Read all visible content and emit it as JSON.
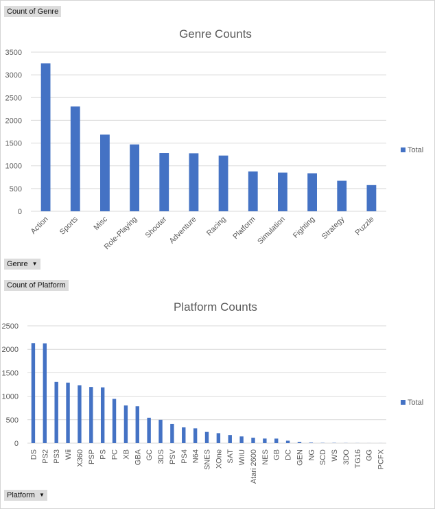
{
  "genre_panel": {
    "field_label": "Count of Genre",
    "axis_button": "Genre"
  },
  "platform_panel": {
    "field_label": "Count of Platform",
    "axis_button": "Platform"
  },
  "colors": {
    "bar": "#4472c4",
    "grid": "#d9d9d9",
    "text": "#595959"
  },
  "icons": {
    "dropdown": "chevron-down-icon"
  },
  "chart_data": [
    {
      "type": "bar",
      "title": "Genre Counts",
      "xlabel": "",
      "ylabel": "",
      "ylim": [
        0,
        3500
      ],
      "yticks": [
        0,
        500,
        1000,
        1500,
        2000,
        2500,
        3000,
        3500
      ],
      "grid": true,
      "legend": "right",
      "categories": [
        "Action",
        "Sports",
        "Misc",
        "Role-Playing",
        "Shooter",
        "Adventure",
        "Racing",
        "Platform",
        "Simulation",
        "Fighting",
        "Strategy",
        "Puzzle"
      ],
      "series": [
        {
          "name": "Total",
          "values": [
            3253,
            2304,
            1686,
            1470,
            1282,
            1276,
            1226,
            876,
            851,
            836,
            671,
            576
          ]
        }
      ]
    },
    {
      "type": "bar",
      "title": "Platform Counts",
      "xlabel": "",
      "ylabel": "",
      "ylim": [
        0,
        2500
      ],
      "yticks": [
        0,
        500,
        1000,
        1500,
        2000,
        2500
      ],
      "grid": true,
      "legend": "right",
      "categories": [
        "DS",
        "PS2",
        "PS3",
        "Wii",
        "X360",
        "PSP",
        "PS",
        "PC",
        "XB",
        "GBA",
        "GC",
        "3DS",
        "PSV",
        "PS4",
        "N64",
        "SNES",
        "XOne",
        "SAT",
        "WiiU",
        "Atari 2600",
        "NES",
        "GB",
        "DC",
        "GEN",
        "NG",
        "SCD",
        "WS",
        "3DO",
        "TG16",
        "GG",
        "PCFX"
      ],
      "series": [
        {
          "name": "Total",
          "values": [
            2131,
            2127,
            1304,
            1290,
            1234,
            1197,
            1189,
            943,
            803,
            786,
            542,
            499,
            410,
            336,
            316,
            239,
            213,
            173,
            143,
            116,
            98,
            97,
            52,
            27,
            12,
            6,
            6,
            3,
            2,
            1,
            1
          ]
        }
      ]
    }
  ]
}
